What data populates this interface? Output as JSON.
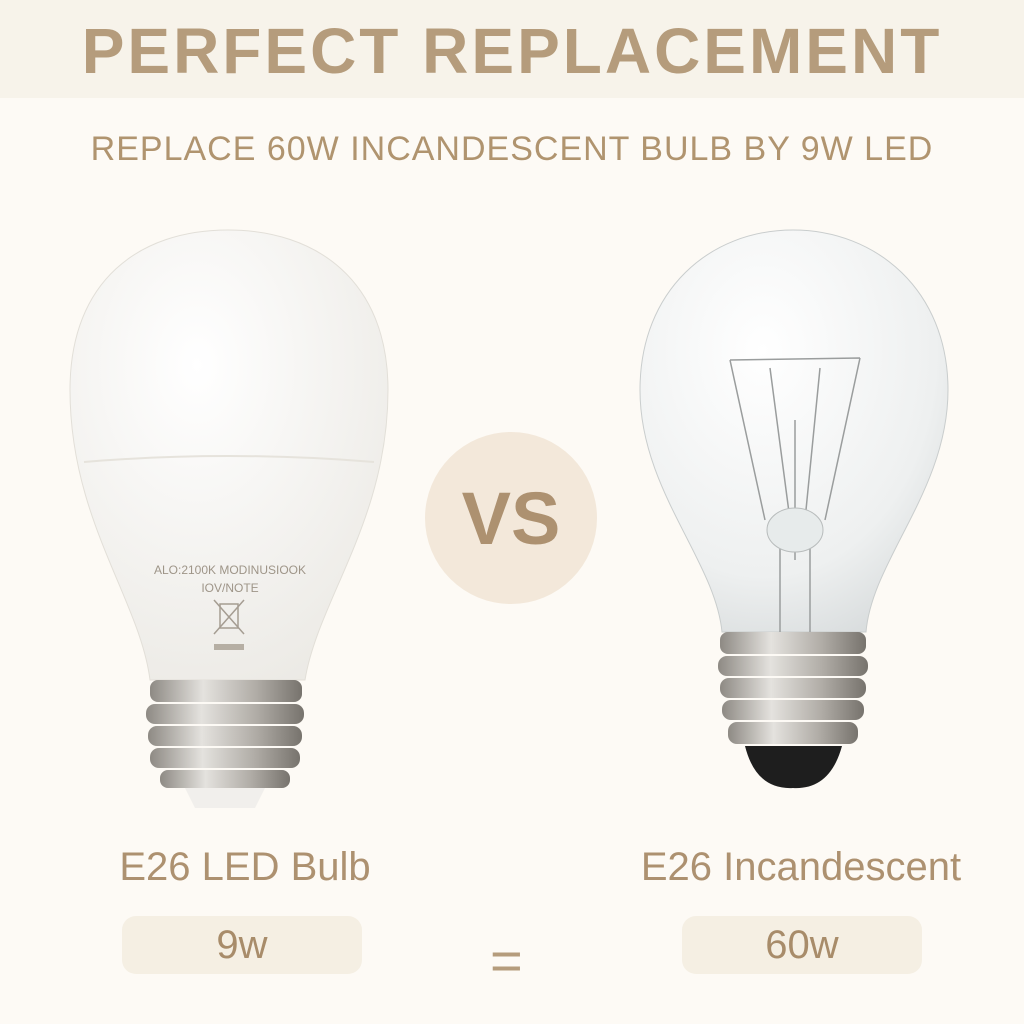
{
  "header": {
    "title": "PERFECT REPLACEMENT"
  },
  "subtitle": "REPLACE 60W INCANDESCENT BULB BY 9W LED",
  "vs_label": "VS",
  "led": {
    "name": "E26 LED Bulb",
    "wattage": "9w",
    "print_line1": "ALO:2100K MODINUSIOOK",
    "print_line2": "IOV/NOTE"
  },
  "incandescent": {
    "name": "E26 Incandescent",
    "wattage": "60w"
  },
  "equals": "=",
  "colors": {
    "accent": "#b59c7c",
    "band": "#f7f3ea",
    "background": "#fdfaf5",
    "pill": "#f5efe3",
    "vs_circle": "#f3e8da"
  }
}
